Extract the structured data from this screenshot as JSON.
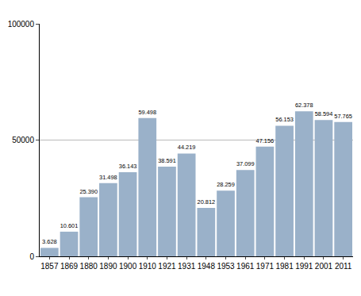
{
  "chart_data": {
    "type": "bar",
    "categories": [
      "1857",
      "1869",
      "1880",
      "1890",
      "1900",
      "1910",
      "1921",
      "1931",
      "1948",
      "1953",
      "1961",
      "1971",
      "1981",
      "1991",
      "2001",
      "2011"
    ],
    "values": [
      3628,
      10601,
      25390,
      31498,
      36143,
      59498,
      38591,
      44219,
      20812,
      28259,
      37099,
      47156,
      56153,
      62378,
      58594,
      57765
    ],
    "value_labels": [
      "3.628",
      "10.601",
      "25.390",
      "31.498",
      "36.143",
      "59.498",
      "38.591",
      "44.219",
      "20.812",
      "28.259",
      "37.099",
      "47.156",
      "56.153",
      "62.378",
      "58.594",
      "57.765"
    ],
    "color": "#9ab1c9",
    "ylim": [
      0,
      100000
    ],
    "yticks": [
      0,
      50000,
      100000
    ],
    "grid": true,
    "data_labels": true
  }
}
